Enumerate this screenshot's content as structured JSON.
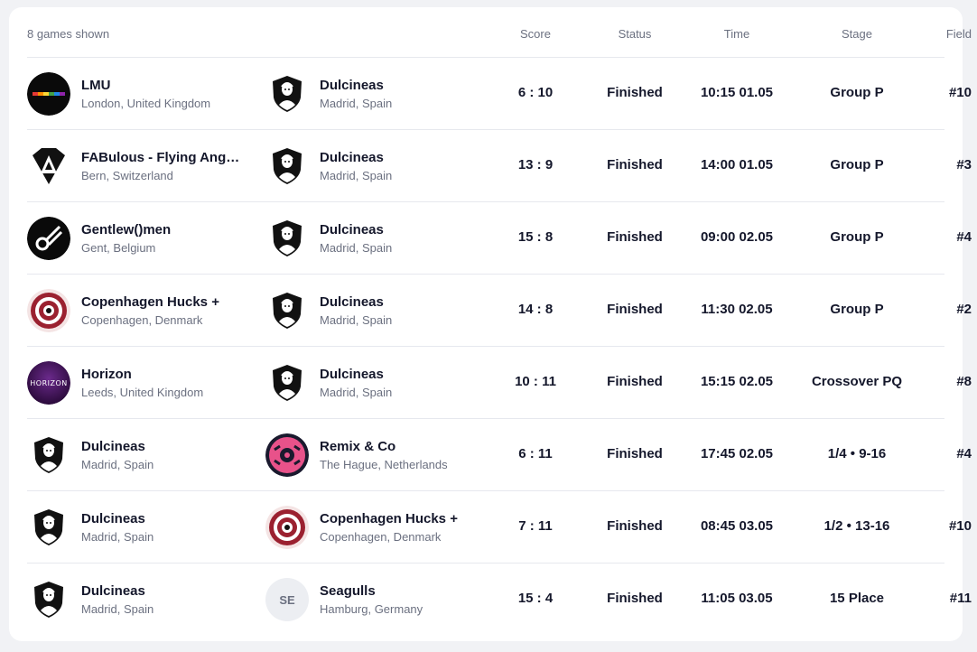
{
  "header": {
    "count_label": "8 games shown",
    "col_score": "Score",
    "col_status": "Status",
    "col_time": "Time",
    "col_stage": "Stage",
    "col_field": "Field"
  },
  "games": [
    {
      "home": {
        "name": "LMU",
        "city": "London, United Kingdom",
        "logo": "lmu-logo-icon"
      },
      "away": {
        "name": "Dulcineas",
        "city": "Madrid, Spain",
        "logo": "dulcineas-logo-icon"
      },
      "score": "6 : 10",
      "status": "Finished",
      "time": "10:15 01.05",
      "stage": "Group P",
      "field": "#10"
    },
    {
      "home": {
        "name": "FABulous - Flying Angel…",
        "city": "Bern, Switzerland",
        "logo": "fabulous-logo-icon"
      },
      "away": {
        "name": "Dulcineas",
        "city": "Madrid, Spain",
        "logo": "dulcineas-logo-icon"
      },
      "score": "13 : 9",
      "status": "Finished",
      "time": "14:00 01.05",
      "stage": "Group P",
      "field": "#3"
    },
    {
      "home": {
        "name": "Gentlew()men",
        "city": "Gent, Belgium",
        "logo": "gentlewomen-logo-icon"
      },
      "away": {
        "name": "Dulcineas",
        "city": "Madrid, Spain",
        "logo": "dulcineas-logo-icon"
      },
      "score": "15 : 8",
      "status": "Finished",
      "time": "09:00 02.05",
      "stage": "Group P",
      "field": "#4"
    },
    {
      "home": {
        "name": "Copenhagen Hucks +",
        "city": "Copenhagen, Denmark",
        "logo": "copenhagen-hucks-logo-icon"
      },
      "away": {
        "name": "Dulcineas",
        "city": "Madrid, Spain",
        "logo": "dulcineas-logo-icon"
      },
      "score": "14 : 8",
      "status": "Finished",
      "time": "11:30 02.05",
      "stage": "Group P",
      "field": "#2"
    },
    {
      "home": {
        "name": "Horizon",
        "city": "Leeds, United Kingdom",
        "logo": "horizon-logo-icon",
        "logo_text": "HORIZON"
      },
      "away": {
        "name": "Dulcineas",
        "city": "Madrid, Spain",
        "logo": "dulcineas-logo-icon"
      },
      "score": "10 : 11",
      "status": "Finished",
      "time": "15:15 02.05",
      "stage": "Crossover PQ",
      "field": "#8"
    },
    {
      "home": {
        "name": "Dulcineas",
        "city": "Madrid, Spain",
        "logo": "dulcineas-logo-icon"
      },
      "away": {
        "name": "Remix & Co",
        "city": "The Hague, Netherlands",
        "logo": "remix-logo-icon"
      },
      "score": "6 : 11",
      "status": "Finished",
      "time": "17:45 02.05",
      "stage": "1/4 • 9-16",
      "field": "#4"
    },
    {
      "home": {
        "name": "Dulcineas",
        "city": "Madrid, Spain",
        "logo": "dulcineas-logo-icon"
      },
      "away": {
        "name": "Copenhagen Hucks +",
        "city": "Copenhagen, Denmark",
        "logo": "copenhagen-hucks-logo-icon"
      },
      "score": "7 : 11",
      "status": "Finished",
      "time": "08:45 03.05",
      "stage": "1/2 • 13-16",
      "field": "#10"
    },
    {
      "home": {
        "name": "Dulcineas",
        "city": "Madrid, Spain",
        "logo": "dulcineas-logo-icon"
      },
      "away": {
        "name": "Seagulls",
        "city": "Hamburg, Germany",
        "logo": "seagulls-initials-icon",
        "initials": "SE"
      },
      "score": "15 : 4",
      "status": "Finished",
      "time": "11:05 03.05",
      "stage": "15 Place",
      "field": "#11"
    }
  ]
}
